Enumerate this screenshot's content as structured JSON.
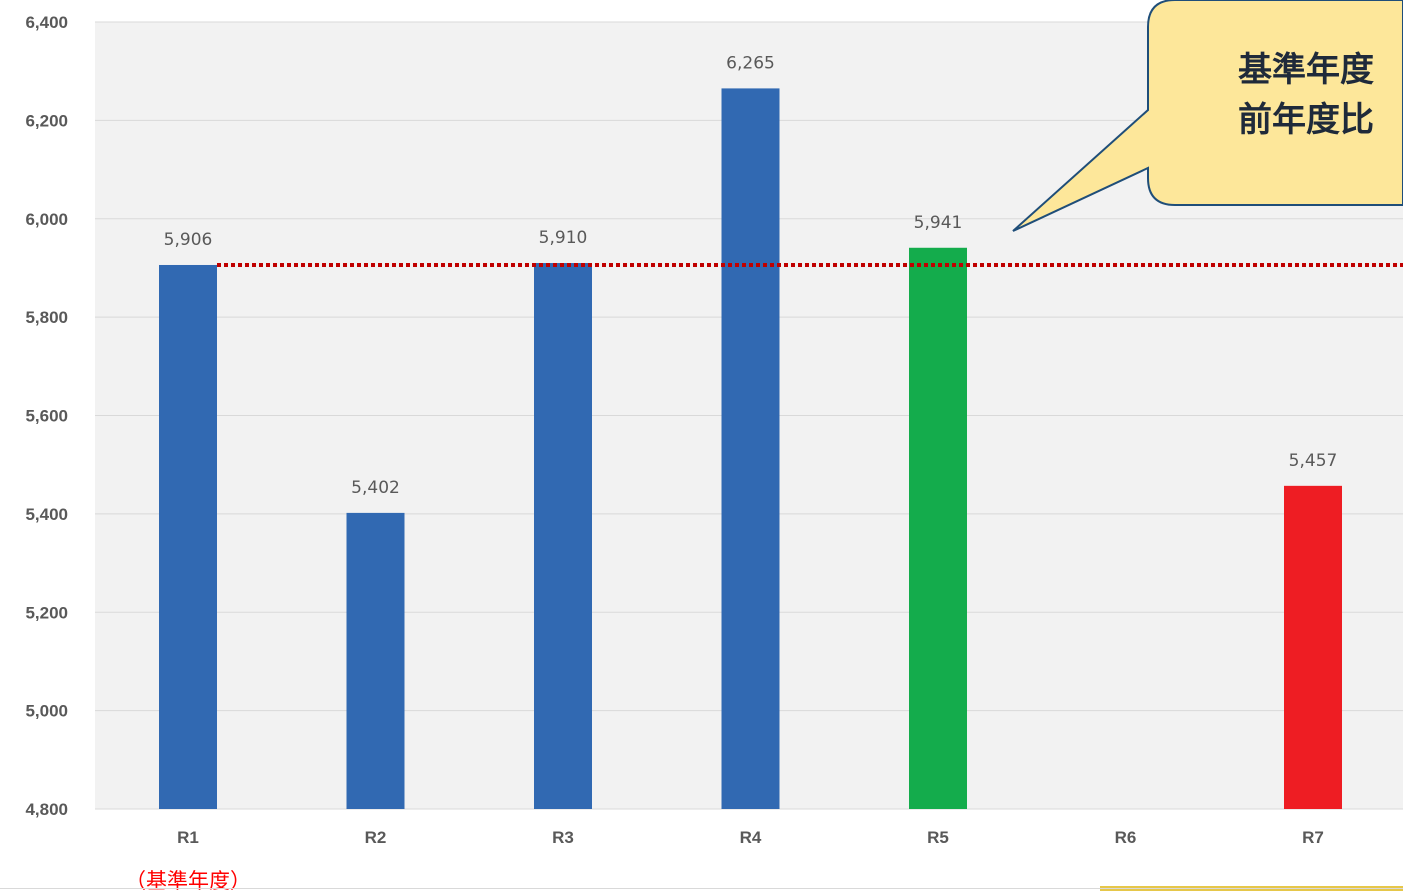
{
  "chart_data": {
    "type": "bar",
    "categories": [
      "R1",
      "R2",
      "R3",
      "R4",
      "R5",
      "R6",
      "R7"
    ],
    "values": [
      5906,
      5402,
      5910,
      6265,
      5941,
      null,
      5457
    ],
    "data_labels": [
      "5,906",
      "5,402",
      "5,910",
      "6,265",
      "5,941",
      "",
      "5,457"
    ],
    "bar_colors": [
      "#3169b2",
      "#3169b2",
      "#3169b2",
      "#3169b2",
      "#14ac4c",
      "#3169b2",
      "#ee1d23"
    ],
    "ylim": [
      4800,
      6400
    ],
    "yticks": [
      4800,
      5000,
      5200,
      5400,
      5600,
      5800,
      6000,
      6200,
      6400
    ],
    "ytick_labels": [
      "4,800",
      "5,000",
      "5,200",
      "5,400",
      "5,600",
      "5,800",
      "6,000",
      "6,200",
      "6,400"
    ],
    "grid": true,
    "reference_line": {
      "value": 5906,
      "color": "#c00000",
      "style": "dotted"
    },
    "annotations": {
      "base_year_note": "（基準年度）",
      "base_year_color": "#ff0000",
      "callout_lines": [
        "基準年度",
        "前年度比"
      ],
      "callout_fill": "#fde79a",
      "callout_border": "#1f4e79"
    },
    "plot_background": "#f2f2f2",
    "gridline_color": "#d9d9d9"
  }
}
